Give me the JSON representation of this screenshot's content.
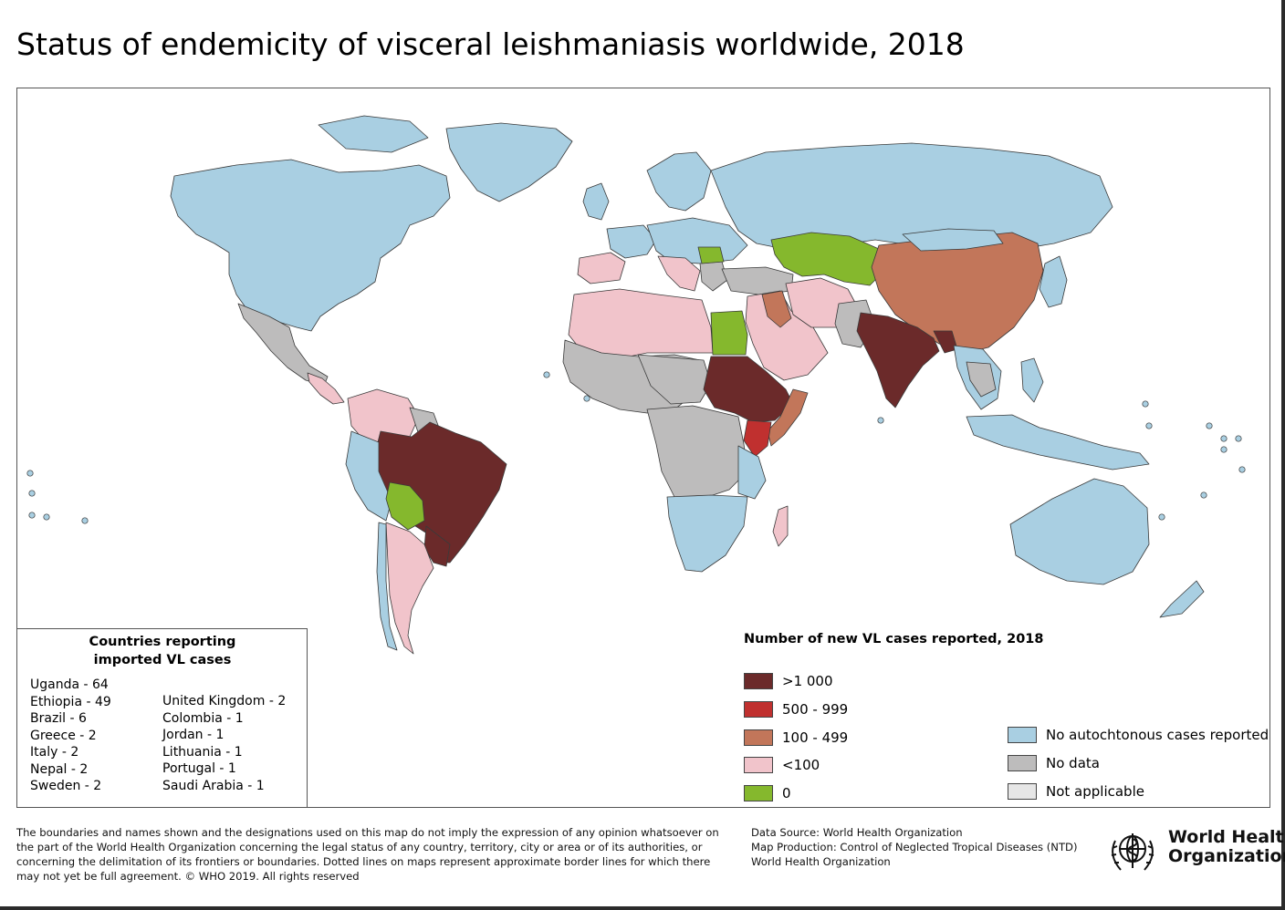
{
  "title": "Status of endemicity of visceral leishmaniasis worldwide, 2018",
  "colors": {
    "gt1000": "#6b2a2a",
    "c500_999": "#c0302f",
    "c100_499": "#c2765a",
    "lt100": "#f1c4cb",
    "zero": "#85b82d",
    "no_autochthonous": "#a9cfe2",
    "no_data": "#bdbcbc",
    "not_applicable": "#e6e6e6",
    "border": "#3a3a3a"
  },
  "imported": {
    "title_line1": "Countries reporting",
    "title_line2": "imported VL cases",
    "col1": [
      "Uganda - 64",
      "Ethiopia - 49",
      "Brazil - 6",
      "Greece - 2",
      "Italy - 2",
      "Nepal - 2",
      "Sweden - 2"
    ],
    "col2": [
      "United Kingdom - 2",
      "Colombia - 1",
      "Jordan - 1",
      "Lithuania - 1",
      "Portugal - 1",
      "Saudi Arabia - 1"
    ]
  },
  "legend": {
    "title": "Number of new VL cases reported, 2018",
    "cases": [
      {
        "label": ">1 000",
        "color": "#6b2a2a"
      },
      {
        "label": "500 - 999",
        "color": "#c0302f"
      },
      {
        "label": "100 - 499",
        "color": "#c2765a"
      },
      {
        "label": "<100",
        "color": "#f1c4cb"
      },
      {
        "label": "0",
        "color": "#85b82d"
      }
    ],
    "status": [
      {
        "label": "No autochtonous cases reported",
        "color": "#a9cfe2"
      },
      {
        "label": "No data",
        "color": "#bdbcbc"
      },
      {
        "label": "Not applicable",
        "color": "#e6e6e6"
      }
    ]
  },
  "disclaimer": "The boundaries and names shown and the designations used on this map do not imply the expression of any opinion whatsoever on the part of the World Health Organization concerning the legal status of any country, territory, city or area or of its authorities, or concerning the delimitation of its frontiers or boundaries. Dotted lines on maps represent approximate border lines for which there may not yet be full agreement. © WHO 2019. All rights reserved",
  "source": {
    "line1": "Data Source: World Health Organization",
    "line2": "Map Production: Control of Neglected Tropical Diseases (NTD)",
    "line3": "World Health Organization"
  },
  "logo": {
    "icon": "who-emblem-icon",
    "line1": "World Health",
    "line2": "Organization"
  }
}
